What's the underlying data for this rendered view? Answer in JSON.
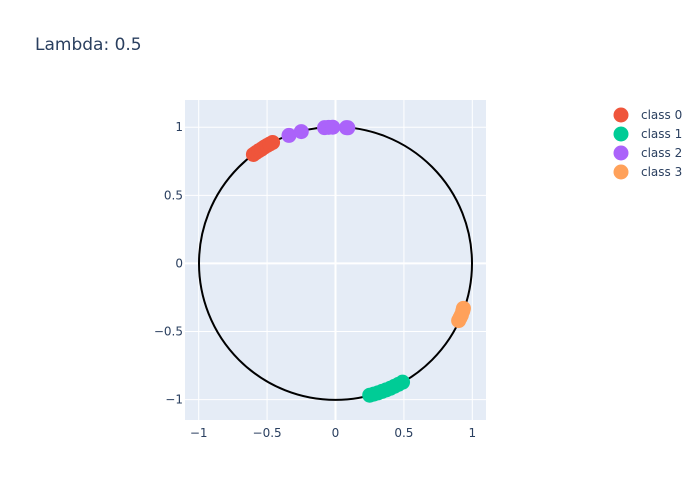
{
  "chart_data": {
    "type": "scatter",
    "title": "Lambda: 0.5",
    "xlabel": "",
    "ylabel": "",
    "xlim": [
      -1.1,
      1.1
    ],
    "ylim": [
      -1.15,
      1.2
    ],
    "xticks": [
      -1,
      -0.5,
      0,
      0.5,
      1
    ],
    "xtick_labels": [
      "−1",
      "−0.5",
      "0",
      "0.5",
      "1"
    ],
    "yticks": [
      -1,
      -0.5,
      0,
      0.5,
      1
    ],
    "ytick_labels": [
      "−1",
      "−0.5",
      "0",
      "0.5",
      "1"
    ],
    "grid": true,
    "legend_position": "top-right",
    "background_color": "#E5ECF6",
    "circle": {
      "center": [
        0,
        0
      ],
      "radius": 1,
      "color": "#000000"
    },
    "series": [
      {
        "name": "class 0",
        "color": "#EF553B",
        "points": [
          [
            -0.6,
            0.8
          ],
          [
            -0.58,
            0.815
          ],
          [
            -0.56,
            0.828
          ],
          [
            -0.54,
            0.84
          ],
          [
            -0.52,
            0.854
          ],
          [
            -0.5,
            0.866
          ],
          [
            -0.48,
            0.877
          ],
          [
            -0.46,
            0.888
          ]
        ]
      },
      {
        "name": "class 1",
        "color": "#00CC96",
        "points": [
          [
            0.25,
            -0.968
          ],
          [
            0.28,
            -0.96
          ],
          [
            0.31,
            -0.951
          ],
          [
            0.34,
            -0.94
          ],
          [
            0.37,
            -0.929
          ],
          [
            0.4,
            -0.917
          ],
          [
            0.43,
            -0.903
          ],
          [
            0.46,
            -0.888
          ],
          [
            0.49,
            -0.872
          ]
        ]
      },
      {
        "name": "class 2",
        "color": "#AB63FA",
        "points": [
          [
            -0.34,
            0.94
          ],
          [
            -0.25,
            0.968
          ],
          [
            -0.08,
            0.997
          ],
          [
            -0.05,
            0.999
          ],
          [
            -0.02,
            1.0
          ],
          [
            0.08,
            0.997
          ],
          [
            0.09,
            0.996
          ]
        ]
      },
      {
        "name": "class 3",
        "color": "#FFA15A",
        "points": [
          [
            0.9,
            -0.42
          ],
          [
            0.91,
            -0.4
          ],
          [
            0.92,
            -0.38
          ],
          [
            0.93,
            -0.35
          ],
          [
            0.935,
            -0.33
          ]
        ]
      }
    ]
  }
}
